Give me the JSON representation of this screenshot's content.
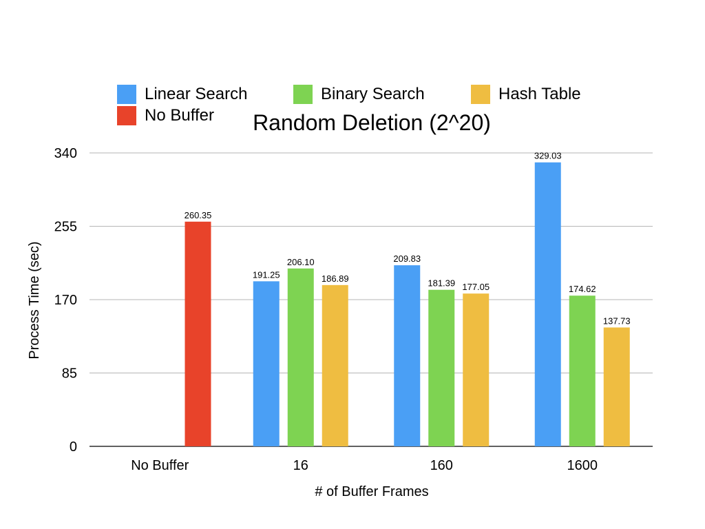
{
  "chart_data": {
    "type": "bar",
    "title": "Random Deletion (2^20)",
    "xlabel": "# of Buffer Frames",
    "ylabel": "Process Time (sec)",
    "ylim": [
      0,
      340
    ],
    "yticks": [
      0,
      85,
      170,
      255,
      340
    ],
    "grid": true,
    "legend_position": "top",
    "categories": [
      "No Buffer",
      "16",
      "160",
      "1600"
    ],
    "series": [
      {
        "name": "No Buffer",
        "color": "#e8432a",
        "values": [
          260.35,
          null,
          null,
          null
        ],
        "labels": [
          "260.35",
          "",
          "",
          ""
        ]
      },
      {
        "name": "Linear Search",
        "color": "#4a9ff5",
        "values": [
          null,
          191.25,
          209.83,
          329.03
        ],
        "labels": [
          "",
          "191.25",
          "209.83",
          "329.03"
        ]
      },
      {
        "name": "Binary Search",
        "color": "#7ed352",
        "values": [
          null,
          206.1,
          181.39,
          174.62
        ],
        "labels": [
          "",
          "206.10",
          "181.39",
          "174.62"
        ]
      },
      {
        "name": "Hash Table",
        "color": "#efbd41",
        "values": [
          null,
          186.89,
          177.05,
          137.73
        ],
        "labels": [
          "",
          "186.89",
          "177.05",
          "137.73"
        ]
      }
    ]
  }
}
